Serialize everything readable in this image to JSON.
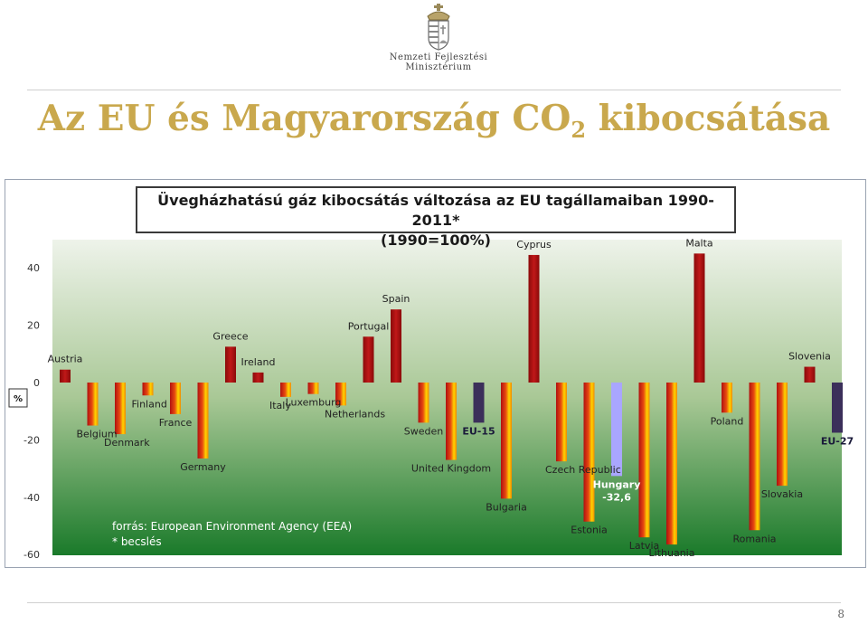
{
  "header": {
    "ministry_line1": "Nemzeti Fejlesztési",
    "ministry_line2": "Minisztérium",
    "logo_icon": "hungarian-coat-of-arms-icon"
  },
  "slide": {
    "title_main": "Az EU és Magyarország CO",
    "title_sub": "2",
    "title_end": " kibocsátása",
    "page_number": "8"
  },
  "colors": {
    "title_gold": "#c9a84d",
    "bar_country": "#b01010",
    "bar_gradient_end": "#ffd400",
    "bar_aggregate": "#3b2f5a",
    "bar_hungary": "#a9a6ff",
    "plot_bg_top": "#eef3ea",
    "plot_bg_bottom": "#1a7a2a"
  },
  "chart_data": {
    "type": "bar",
    "title_line1": "Üvegházhatású gáz kibocsátás változása az EU tagállamaiban 1990-2011*",
    "title_line2": "(1990=100%)",
    "ylabel": "%",
    "ylim": [
      -60,
      47
    ],
    "yticks": [
      40,
      20,
      0,
      -20,
      -40,
      -60
    ],
    "grid": false,
    "notes": [
      "forrás: European Environment Agency (EEA)",
      "* becslés"
    ],
    "categories": [
      "Austria",
      "Belgium",
      "Denmark",
      "Finland",
      "France",
      "Germany",
      "Greece",
      "Ireland",
      "Italy",
      "Luxemburg",
      "Netherlands",
      "Portugal",
      "Spain",
      "Sweden",
      "United Kingdom",
      "EU-15",
      "Bulgaria",
      "Cyprus",
      "Czech Republic",
      "Estonia",
      "Hungary",
      "Latvia",
      "Lithuania",
      "Malta",
      "Poland",
      "Romania",
      "Slovakia",
      "Slovenia",
      "EU-27"
    ],
    "values": [
      4.5,
      -15,
      -18,
      -4.5,
      -11,
      -26.5,
      12.5,
      3.5,
      -5,
      -4,
      -8,
      16,
      25.5,
      -14,
      -27,
      -14,
      -40.5,
      44.5,
      -27.5,
      -48.5,
      -32.6,
      -54,
      -56.5,
      45,
      -10.5,
      -51.5,
      -36,
      5.5,
      -17.5
    ],
    "kinds": [
      "country",
      "country",
      "country",
      "country",
      "country",
      "country",
      "country",
      "country",
      "country",
      "country",
      "country",
      "country",
      "country",
      "country",
      "country",
      "aggregate",
      "country",
      "country",
      "country",
      "country",
      "hungary",
      "country",
      "country",
      "country",
      "country",
      "country",
      "country",
      "country",
      "aggregate"
    ],
    "hungary_label": "Hungary",
    "hungary_value_label": "-32,6"
  }
}
